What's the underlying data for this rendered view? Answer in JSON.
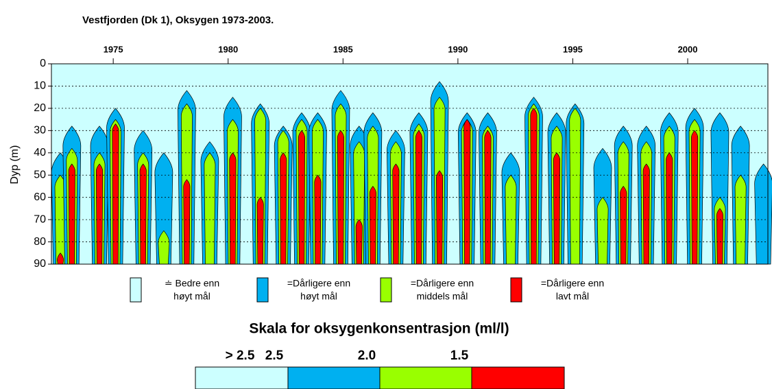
{
  "chart_data": {
    "type": "contour",
    "title": "Vestfjorden (Dk 1),  Oksygen 1973-2003.",
    "y_label": "Dyp (m)",
    "xlim": [
      1972.31,
      2003.49
    ],
    "xticks": [
      1975,
      1980,
      1985,
      1990,
      1995,
      2000
    ],
    "ylim": [
      0,
      90
    ],
    "yticks": [
      0,
      10,
      20,
      30,
      40,
      50,
      60,
      70,
      80,
      90
    ],
    "y_inverted": true,
    "grid": true,
    "legend": [
      {
        "color": "#ccffff",
        "lines": [
          "≐ Bedre enn",
          "høyt mål"
        ]
      },
      {
        "color": "#00b0f0",
        "lines": [
          "=Dårligere enn",
          "høyt mål"
        ]
      },
      {
        "color": "#99ff00",
        "lines": [
          "=Dårligere enn",
          "middels mål"
        ]
      },
      {
        "color": "#ff0000",
        "lines": [
          "=Dårligere enn",
          "lavt mål"
        ]
      }
    ],
    "plumes": [
      {
        "x": 1972.7,
        "tops": [
          40,
          50,
          85
        ]
      },
      {
        "x": 1973.2,
        "tops": [
          28,
          38,
          45
        ]
      },
      {
        "x": 1974.4,
        "tops": [
          28,
          40,
          45
        ]
      },
      {
        "x": 1975.1,
        "tops": [
          20,
          25,
          27
        ]
      },
      {
        "x": 1976.3,
        "tops": [
          30,
          40,
          45
        ]
      },
      {
        "x": 1977.2,
        "tops": [
          40,
          75,
          null
        ]
      },
      {
        "x": 1978.2,
        "tops": [
          12,
          18,
          52
        ]
      },
      {
        "x": 1979.2,
        "tops": [
          35,
          40,
          null
        ]
      },
      {
        "x": 1980.2,
        "tops": [
          15,
          25,
          40
        ]
      },
      {
        "x": 1981.4,
        "tops": [
          18,
          20,
          60
        ]
      },
      {
        "x": 1982.4,
        "tops": [
          28,
          30,
          40
        ]
      },
      {
        "x": 1983.2,
        "tops": [
          22,
          25,
          30
        ]
      },
      {
        "x": 1983.9,
        "tops": [
          22,
          25,
          50
        ]
      },
      {
        "x": 1984.9,
        "tops": [
          12,
          18,
          30
        ]
      },
      {
        "x": 1985.7,
        "tops": [
          28,
          35,
          70
        ]
      },
      {
        "x": 1986.3,
        "tops": [
          22,
          28,
          55
        ]
      },
      {
        "x": 1987.3,
        "tops": [
          30,
          35,
          45
        ]
      },
      {
        "x": 1988.3,
        "tops": [
          22,
          27,
          30
        ]
      },
      {
        "x": 1989.2,
        "tops": [
          8,
          15,
          48
        ]
      },
      {
        "x": 1990.4,
        "tops": [
          22,
          25,
          25
        ]
      },
      {
        "x": 1991.3,
        "tops": [
          22,
          28,
          30
        ]
      },
      {
        "x": 1992.3,
        "tops": [
          40,
          50,
          null
        ]
      },
      {
        "x": 1993.3,
        "tops": [
          15,
          18,
          20
        ]
      },
      {
        "x": 1994.3,
        "tops": [
          22,
          28,
          40
        ]
      },
      {
        "x": 1995.1,
        "tops": [
          18,
          20,
          null
        ]
      },
      {
        "x": 1996.3,
        "tops": [
          38,
          60,
          null
        ]
      },
      {
        "x": 1997.2,
        "tops": [
          28,
          35,
          55
        ]
      },
      {
        "x": 1998.2,
        "tops": [
          28,
          35,
          45
        ]
      },
      {
        "x": 1999.2,
        "tops": [
          22,
          28,
          40
        ]
      },
      {
        "x": 2000.3,
        "tops": [
          20,
          25,
          30
        ]
      },
      {
        "x": 2001.4,
        "tops": [
          22,
          60,
          65
        ]
      },
      {
        "x": 2002.3,
        "tops": [
          28,
          50,
          null
        ]
      },
      {
        "x": 2003.3,
        "tops": [
          45,
          null,
          null
        ]
      }
    ],
    "scale": {
      "title": "Skala for oksygenkonsentrasjon (ml/l)",
      "labels": [
        "> 2.5",
        "2.5",
        "2.0",
        "1.5"
      ]
    }
  }
}
